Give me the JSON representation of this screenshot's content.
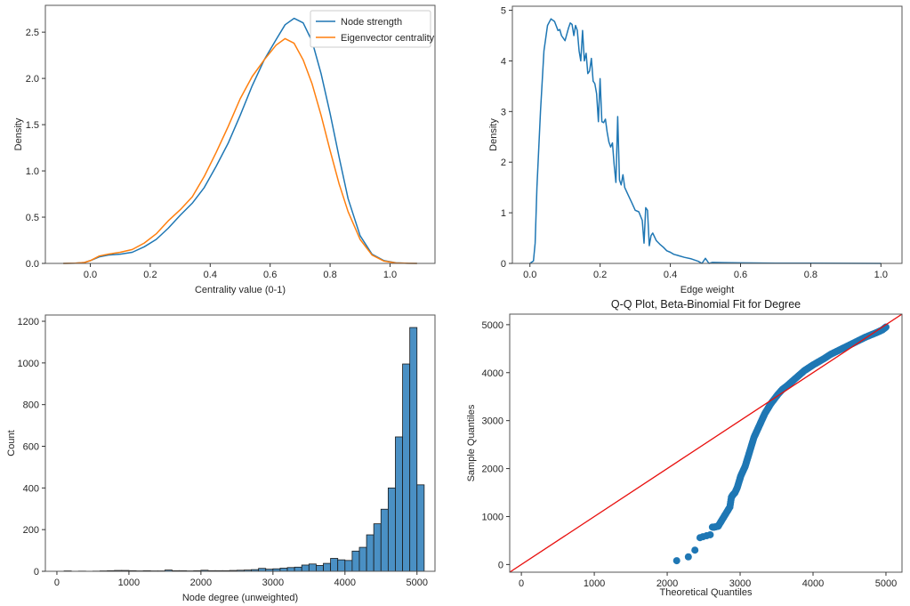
{
  "colors": {
    "blue": "#1f77b4",
    "orange": "#ff7f0e",
    "hist_fill": "#4a90c4",
    "red_line": "#e8110f",
    "scatter": "#1f77b4",
    "frame": "#555555"
  },
  "chart_data": [
    {
      "id": "centrality-kde",
      "type": "line",
      "title": "",
      "xlabel": "Centrality value (0-1)",
      "ylabel": "Density",
      "xlim": [
        -0.15,
        1.15
      ],
      "ylim": [
        0,
        2.79
      ],
      "xticks": [
        0.0,
        0.2,
        0.4,
        0.6,
        0.8,
        1.0
      ],
      "xtick_labels": [
        "0.0",
        "0.2",
        "0.4",
        "0.6",
        "0.8",
        "1.0"
      ],
      "yticks": [
        0.0,
        0.5,
        1.0,
        1.5,
        2.0,
        2.5
      ],
      "ytick_labels": [
        "0.0",
        "0.5",
        "1.0",
        "1.5",
        "2.0",
        "2.5"
      ],
      "legend": {
        "position": "top-right",
        "entries": [
          "Node strength",
          "Eigenvector centrality"
        ]
      },
      "series": [
        {
          "name": "Node strength",
          "color": "blue",
          "x": [
            -0.09,
            -0.05,
            -0.02,
            0.0,
            0.03,
            0.06,
            0.1,
            0.14,
            0.18,
            0.22,
            0.26,
            0.3,
            0.34,
            0.38,
            0.42,
            0.46,
            0.5,
            0.54,
            0.58,
            0.62,
            0.65,
            0.68,
            0.71,
            0.74,
            0.77,
            0.8,
            0.83,
            0.86,
            0.9,
            0.94,
            0.98,
            1.02,
            1.06,
            1.09
          ],
          "y": [
            0.0,
            0.003,
            0.01,
            0.03,
            0.07,
            0.09,
            0.1,
            0.12,
            0.18,
            0.26,
            0.38,
            0.52,
            0.65,
            0.82,
            1.05,
            1.3,
            1.6,
            1.92,
            2.2,
            2.42,
            2.58,
            2.65,
            2.6,
            2.4,
            2.05,
            1.62,
            1.15,
            0.7,
            0.3,
            0.1,
            0.03,
            0.006,
            0.001,
            0.0
          ]
        },
        {
          "name": "Eigenvector centrality",
          "color": "orange",
          "x": [
            -0.09,
            -0.05,
            -0.02,
            0.0,
            0.03,
            0.06,
            0.1,
            0.14,
            0.18,
            0.22,
            0.26,
            0.3,
            0.34,
            0.38,
            0.42,
            0.46,
            0.5,
            0.54,
            0.58,
            0.62,
            0.65,
            0.68,
            0.71,
            0.74,
            0.77,
            0.8,
            0.83,
            0.86,
            0.9,
            0.94,
            0.98,
            1.02,
            1.06,
            1.09
          ],
          "y": [
            0.0,
            0.003,
            0.01,
            0.03,
            0.08,
            0.1,
            0.12,
            0.15,
            0.22,
            0.32,
            0.46,
            0.58,
            0.72,
            0.94,
            1.2,
            1.48,
            1.78,
            2.02,
            2.2,
            2.36,
            2.43,
            2.38,
            2.2,
            1.94,
            1.6,
            1.22,
            0.86,
            0.56,
            0.26,
            0.09,
            0.025,
            0.005,
            0.001,
            0.0
          ]
        }
      ]
    },
    {
      "id": "edge-weight-kde",
      "type": "line",
      "title": "",
      "xlabel": "Edge weight",
      "ylabel": "Density",
      "xlim": [
        -0.05,
        1.06
      ],
      "ylim": [
        0,
        5.08
      ],
      "xticks": [
        0.0,
        0.2,
        0.4,
        0.6,
        0.8,
        1.0
      ],
      "xtick_labels": [
        "0.0",
        "0.2",
        "0.4",
        "0.6",
        "0.8",
        "1.0"
      ],
      "yticks": [
        0,
        1,
        2,
        3,
        4,
        5
      ],
      "ytick_labels": [
        "0",
        "1",
        "2",
        "3",
        "4",
        "5"
      ],
      "series": [
        {
          "name": "Edge weight",
          "color": "blue",
          "x": [
            0.0,
            0.01,
            0.015,
            0.02,
            0.03,
            0.04,
            0.05,
            0.06,
            0.07,
            0.08,
            0.085,
            0.09,
            0.1,
            0.11,
            0.115,
            0.12,
            0.125,
            0.13,
            0.135,
            0.14,
            0.145,
            0.15,
            0.155,
            0.16,
            0.165,
            0.17,
            0.175,
            0.18,
            0.185,
            0.19,
            0.195,
            0.2,
            0.205,
            0.21,
            0.215,
            0.22,
            0.225,
            0.23,
            0.235,
            0.24,
            0.245,
            0.25,
            0.255,
            0.26,
            0.265,
            0.27,
            0.28,
            0.29,
            0.3,
            0.31,
            0.32,
            0.325,
            0.33,
            0.335,
            0.34,
            0.345,
            0.35,
            0.36,
            0.37,
            0.38,
            0.39,
            0.4,
            0.41,
            0.42,
            0.44,
            0.46,
            0.48,
            0.49,
            0.5,
            0.51,
            0.52,
            0.55,
            0.6,
            0.7,
            0.8,
            0.9,
            1.0
          ],
          "y": [
            0.0,
            0.05,
            0.4,
            1.5,
            3.0,
            4.2,
            4.7,
            4.83,
            4.78,
            4.6,
            4.62,
            4.5,
            4.4,
            4.65,
            4.75,
            4.72,
            4.5,
            4.7,
            4.6,
            4.2,
            4.0,
            4.6,
            4.0,
            4.15,
            3.75,
            3.8,
            4.05,
            3.6,
            3.55,
            3.35,
            2.8,
            3.65,
            2.8,
            2.78,
            2.85,
            2.6,
            2.4,
            2.3,
            2.38,
            1.95,
            1.6,
            2.9,
            1.65,
            1.55,
            1.75,
            1.5,
            1.35,
            1.2,
            1.05,
            1.02,
            0.85,
            0.4,
            1.1,
            1.05,
            0.35,
            0.55,
            0.6,
            0.45,
            0.38,
            0.32,
            0.25,
            0.22,
            0.18,
            0.16,
            0.12,
            0.09,
            0.04,
            0.0,
            0.1,
            0.0,
            0.02,
            0.015,
            0.01,
            0.005,
            0.003,
            0.002,
            0.0
          ]
        }
      ]
    },
    {
      "id": "degree-histogram",
      "type": "bar",
      "title": "",
      "xlabel": "Node degree (unweighted)",
      "ylabel": "Count",
      "xlim": [
        -160,
        5250
      ],
      "ylim": [
        0,
        1230
      ],
      "xticks": [
        0,
        1000,
        2000,
        3000,
        4000,
        5000
      ],
      "xtick_labels": [
        "0",
        "1000",
        "2000",
        "3000",
        "4000",
        "5000"
      ],
      "yticks": [
        0,
        200,
        400,
        600,
        800,
        1000,
        1200
      ],
      "ytick_labels": [
        "0",
        "200",
        "400",
        "600",
        "800",
        "1000",
        "1200"
      ],
      "bin_width": 100,
      "bin_start": 0,
      "values": [
        0,
        2,
        0,
        1,
        0,
        1,
        2,
        3,
        4,
        4,
        3,
        2,
        3,
        2,
        2,
        6,
        3,
        3,
        2,
        3,
        5,
        3,
        3,
        3,
        4,
        5,
        6,
        8,
        14,
        10,
        12,
        15,
        18,
        20,
        30,
        35,
        28,
        38,
        62,
        55,
        52,
        97,
        115,
        175,
        228,
        298,
        400,
        645,
        995,
        1170,
        415
      ]
    },
    {
      "id": "qq-plot",
      "type": "scatter",
      "title": "Q-Q Plot, Beta-Binomial Fit for Degree",
      "xlabel": "Theoretical Quantiles",
      "ylabel": "Sample Quantiles",
      "xlim": [
        -160,
        5220
      ],
      "ylim": [
        -160,
        5220
      ],
      "xticks": [
        0,
        1000,
        2000,
        3000,
        4000,
        5000
      ],
      "xtick_labels": [
        "0",
        "1000",
        "2000",
        "3000",
        "4000",
        "5000"
      ],
      "yticks": [
        0,
        1000,
        2000,
        3000,
        4000,
        5000
      ],
      "ytick_labels": [
        "0",
        "1000",
        "2000",
        "3000",
        "4000",
        "5000"
      ],
      "reference_line": {
        "slope": 1,
        "intercept": 0,
        "color": "red_line"
      },
      "points": {
        "x": [
          2130,
          2290,
          2380,
          2450,
          2490,
          2540,
          2590,
          2620,
          2650,
          2700,
          2740,
          2780,
          2820,
          2860,
          2880,
          2900,
          2930,
          2960,
          2990,
          3010,
          3040,
          3070,
          3100,
          3130,
          3160,
          3190,
          3220,
          3250,
          3280,
          3310,
          3340,
          3380,
          3420,
          3470,
          3520,
          3580,
          3640,
          3700,
          3760,
          3820,
          3880,
          3940,
          4000,
          4080,
          4160,
          4240,
          4320,
          4400,
          4480,
          4560,
          4640,
          4720,
          4800,
          4880,
          4950,
          5000
        ],
        "y": [
          80,
          160,
          300,
          560,
          580,
          600,
          620,
          780,
          780,
          800,
          900,
          1000,
          1100,
          1200,
          1400,
          1450,
          1500,
          1600,
          1750,
          1850,
          1950,
          2050,
          2200,
          2350,
          2500,
          2650,
          2750,
          2850,
          2950,
          3050,
          3150,
          3250,
          3350,
          3450,
          3550,
          3650,
          3720,
          3800,
          3880,
          3960,
          4040,
          4100,
          4160,
          4230,
          4300,
          4380,
          4440,
          4500,
          4560,
          4620,
          4680,
          4740,
          4790,
          4840,
          4890,
          4950
        ]
      }
    }
  ]
}
